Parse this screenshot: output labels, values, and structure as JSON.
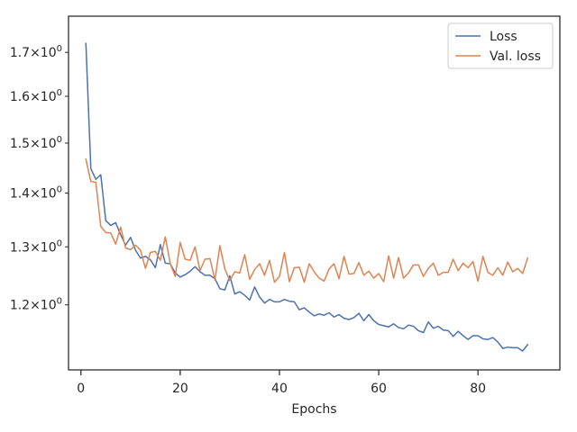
{
  "chart_data": {
    "type": "line",
    "title": "",
    "xlabel": "Epochs",
    "ylabel": "",
    "yscale": "log",
    "xlim": [
      -2.5,
      96.5
    ],
    "ylim": [
      1.097,
      1.787
    ],
    "grid": false,
    "legend_position": "top-right",
    "x_ticks": [
      0,
      20,
      40,
      60,
      80
    ],
    "x_tick_labels": [
      "0",
      "20",
      "40",
      "60",
      "80"
    ],
    "y_ticks": [
      1.2,
      1.3,
      1.4,
      1.5,
      1.6,
      1.7
    ],
    "y_tick_labels": [
      {
        "mantissa": "1.2",
        "base": "10",
        "exp": "0"
      },
      {
        "mantissa": "1.3",
        "base": "10",
        "exp": "0"
      },
      {
        "mantissa": "1.4",
        "base": "10",
        "exp": "0"
      },
      {
        "mantissa": "1.5",
        "base": "10",
        "exp": "0"
      },
      {
        "mantissa": "1.6",
        "base": "10",
        "exp": "0"
      },
      {
        "mantissa": "1.7",
        "base": "10",
        "exp": "0"
      }
    ],
    "x": [
      1,
      2,
      3,
      4,
      5,
      6,
      7,
      8,
      9,
      10,
      11,
      12,
      13,
      14,
      15,
      16,
      17,
      18,
      19,
      20,
      21,
      22,
      23,
      24,
      25,
      26,
      27,
      28,
      29,
      30,
      31,
      32,
      33,
      34,
      35,
      36,
      37,
      38,
      39,
      40,
      41,
      42,
      43,
      44,
      45,
      46,
      47,
      48,
      49,
      50,
      51,
      52,
      53,
      54,
      55,
      56,
      57,
      58,
      59,
      60,
      61,
      62,
      63,
      64,
      65,
      66,
      67,
      68,
      69,
      70,
      71,
      72,
      73,
      74,
      75,
      76,
      77,
      78,
      79,
      80,
      81,
      82,
      83,
      84,
      85,
      86,
      87,
      88,
      89,
      90
    ],
    "series": [
      {
        "name": "Loss",
        "color": "#4c72b0",
        "values": [
          1.721,
          1.448,
          1.427,
          1.436,
          1.348,
          1.339,
          1.344,
          1.322,
          1.303,
          1.317,
          1.294,
          1.28,
          1.283,
          1.277,
          1.263,
          1.304,
          1.271,
          1.27,
          1.254,
          1.247,
          1.251,
          1.257,
          1.265,
          1.256,
          1.25,
          1.25,
          1.244,
          1.227,
          1.225,
          1.249,
          1.218,
          1.222,
          1.216,
          1.208,
          1.23,
          1.213,
          1.203,
          1.209,
          1.205,
          1.205,
          1.209,
          1.206,
          1.205,
          1.192,
          1.195,
          1.188,
          1.182,
          1.185,
          1.183,
          1.187,
          1.18,
          1.184,
          1.178,
          1.176,
          1.179,
          1.186,
          1.174,
          1.184,
          1.174,
          1.168,
          1.166,
          1.164,
          1.169,
          1.163,
          1.161,
          1.167,
          1.165,
          1.158,
          1.155,
          1.172,
          1.162,
          1.165,
          1.159,
          1.158,
          1.149,
          1.157,
          1.15,
          1.144,
          1.15,
          1.15,
          1.145,
          1.144,
          1.147,
          1.14,
          1.13,
          1.132,
          1.131,
          1.131,
          1.126,
          1.136
        ]
      },
      {
        "name": "Val. loss",
        "color": "#dd8452",
        "values": [
          1.467,
          1.423,
          1.421,
          1.337,
          1.326,
          1.325,
          1.305,
          1.336,
          1.298,
          1.295,
          1.303,
          1.294,
          1.262,
          1.29,
          1.292,
          1.276,
          1.318,
          1.27,
          1.248,
          1.308,
          1.278,
          1.276,
          1.3,
          1.258,
          1.278,
          1.279,
          1.242,
          1.302,
          1.261,
          1.241,
          1.256,
          1.254,
          1.286,
          1.243,
          1.26,
          1.27,
          1.25,
          1.276,
          1.238,
          1.248,
          1.29,
          1.239,
          1.263,
          1.264,
          1.238,
          1.27,
          1.256,
          1.245,
          1.24,
          1.261,
          1.27,
          1.244,
          1.283,
          1.252,
          1.253,
          1.272,
          1.25,
          1.257,
          1.245,
          1.253,
          1.239,
          1.284,
          1.245,
          1.281,
          1.245,
          1.254,
          1.268,
          1.268,
          1.248,
          1.262,
          1.271,
          1.25,
          1.255,
          1.255,
          1.278,
          1.258,
          1.271,
          1.263,
          1.274,
          1.24,
          1.283,
          1.255,
          1.25,
          1.263,
          1.25,
          1.273,
          1.256,
          1.262,
          1.253,
          1.28
        ]
      }
    ]
  }
}
